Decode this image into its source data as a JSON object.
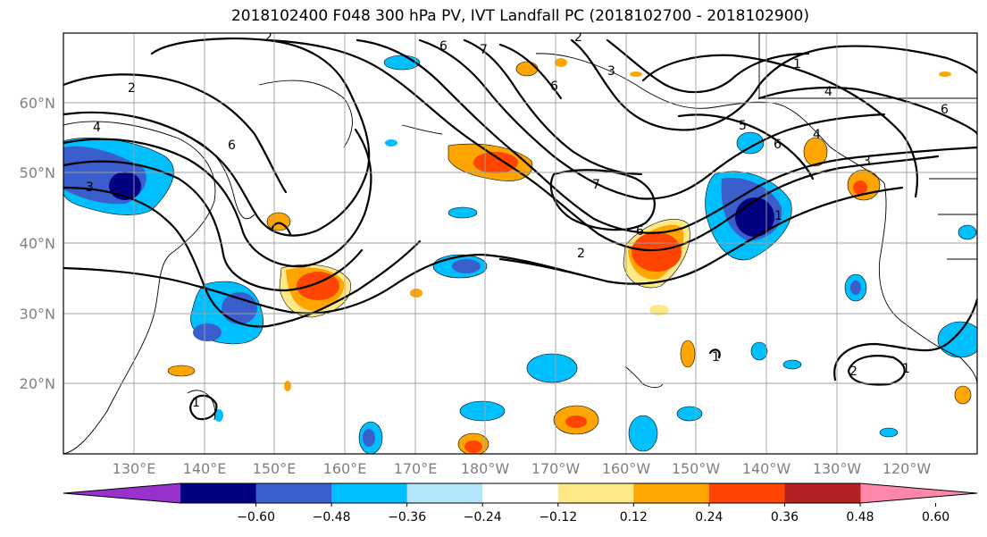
{
  "title": "2018102400 F048 300 hPa PV, IVT Landfall PC (2018102700 - 2018102900)",
  "map": {
    "lat_labels": [
      "60°N",
      "50°N",
      "40°N",
      "30°N",
      "20°N"
    ],
    "lon_labels": [
      "130°E",
      "140°E",
      "150°E",
      "160°E",
      "170°E",
      "180°W",
      "170°W",
      "160°W",
      "150°W",
      "140°W",
      "130°W",
      "120°W"
    ],
    "contour_labels": [
      "2",
      "6",
      "7",
      "4",
      "3",
      "6",
      "2",
      "2",
      "6",
      "7",
      "6",
      "2",
      "5",
      "4",
      "3",
      "3",
      "6",
      "1",
      "4",
      "1",
      "2",
      "1",
      "1",
      "6",
      "1"
    ]
  },
  "colorbar": {
    "tick_labels": [
      "−0.60",
      "−0.48",
      "−0.36",
      "−0.24",
      "−0.12",
      "0.12",
      "0.24",
      "0.36",
      "0.48",
      "0.60"
    ],
    "colors": [
      "#9932cc",
      "#000080",
      "#3a5fcd",
      "#00bfff",
      "#b3e5fc",
      "#ffffff",
      "#ffe986",
      "#ffa500",
      "#ff4500",
      "#b22222",
      "#ff88aa"
    ]
  }
}
